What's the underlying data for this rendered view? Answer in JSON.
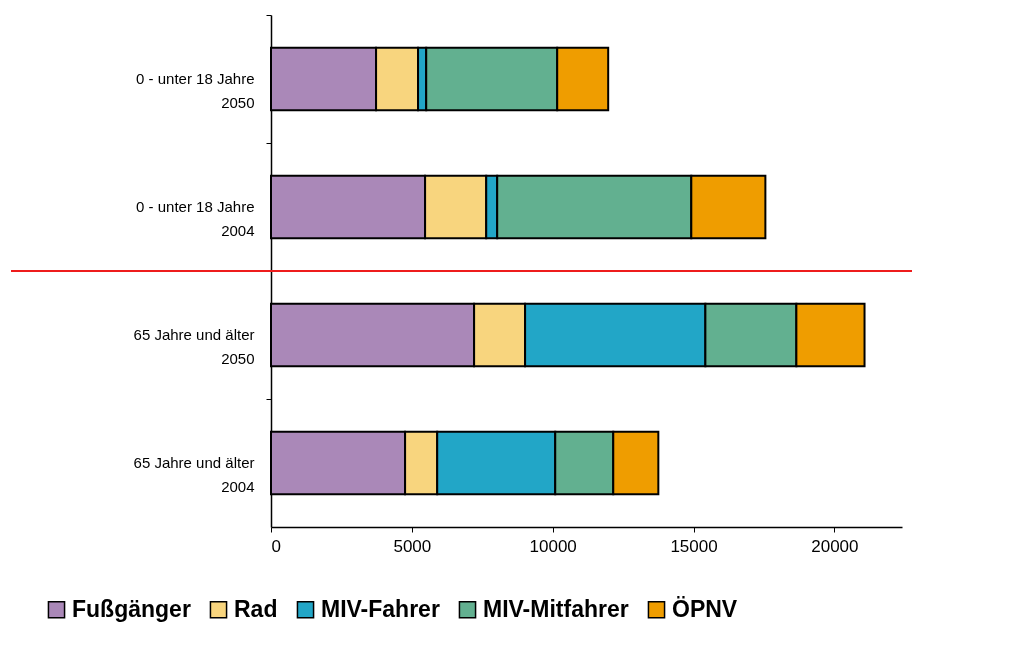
{
  "chart_data": {
    "type": "bar",
    "orientation": "horizontal",
    "stacked": true,
    "categories": [
      "0 - unter 18 Jahre\n2050",
      "0 - unter 18 Jahre\n2004",
      "65 Jahre und älter\n2050",
      "65 Jahre und älter\n2004"
    ],
    "series": [
      {
        "name": "Fußgänger",
        "color": "#aa88b8",
        "values": [
          3730,
          5470,
          7210,
          4760
        ]
      },
      {
        "name": "Rad",
        "color": "#f8d57e",
        "values": [
          1490,
          2170,
          1810,
          1140
        ]
      },
      {
        "name": "MIV-Fahrer",
        "color": "#22a6c7",
        "values": [
          290,
          390,
          6400,
          4190
        ]
      },
      {
        "name": "MIV-Mitfahrer",
        "color": "#62b090",
        "values": [
          4650,
          6890,
          3230,
          2060
        ]
      },
      {
        "name": "ÖPNV",
        "color": "#ef9d00",
        "values": [
          1810,
          2630,
          2420,
          1600
        ]
      }
    ],
    "xlim": [
      0,
      22400
    ],
    "xticks": [
      0,
      5000,
      10000,
      15000,
      20000
    ],
    "legend": "bottom",
    "ref_lines": [
      {
        "axis": "y",
        "value": "0 - unter 18 Jahre\n2004",
        "color": "#ee1c1c"
      }
    ]
  }
}
